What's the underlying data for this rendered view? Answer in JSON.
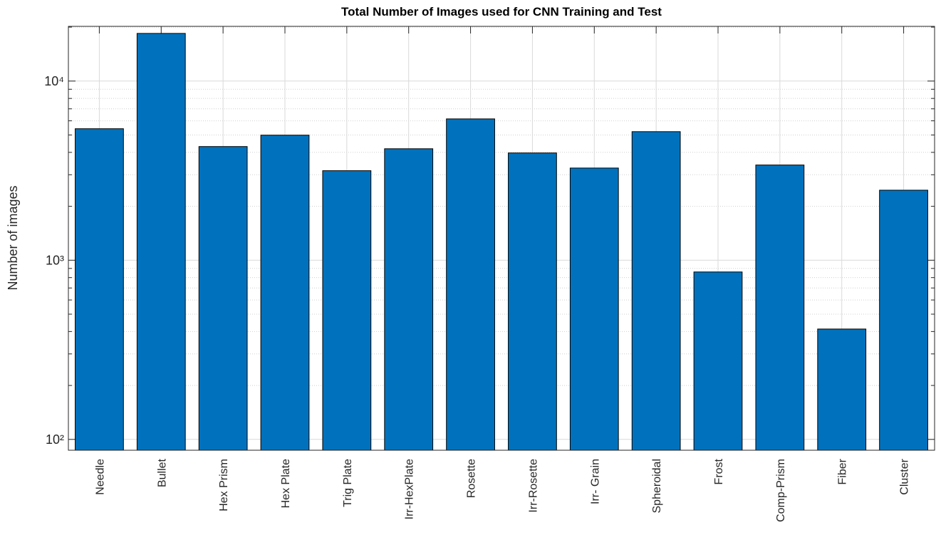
{
  "chart_data": {
    "type": "bar",
    "title": "Total Number of  Images used for CNN Training and Test",
    "y_label": "Number of  images",
    "categories": [
      "Needle",
      "Bullet",
      "Hex Prism",
      "Hex Plate",
      "Trig Plate",
      "Irr-HexPlate",
      "Rosette",
      "Irr-Rosette",
      "Irr- Grain",
      "Spheroidal",
      "Frost",
      "Comp-Prism",
      "Fiber",
      "Cluster"
    ],
    "values": [
      5420,
      18450,
      4310,
      4990,
      3160,
      4190,
      6150,
      3970,
      3270,
      5220,
      860,
      3400,
      413,
      2460
    ],
    "color": "#0072bd",
    "ylim": [
      87,
      20200
    ],
    "y_log": true,
    "yticks": [
      {
        "value": 100,
        "label": "10²"
      },
      {
        "value": 1000,
        "label": "10³"
      },
      {
        "value": 10000,
        "label": "10⁴"
      }
    ],
    "y_minor_ticks": [
      200,
      300,
      400,
      500,
      600,
      700,
      800,
      900,
      2000,
      3000,
      4000,
      5000,
      6000,
      7000,
      8000,
      9000,
      20000
    ],
    "grid": true
  }
}
